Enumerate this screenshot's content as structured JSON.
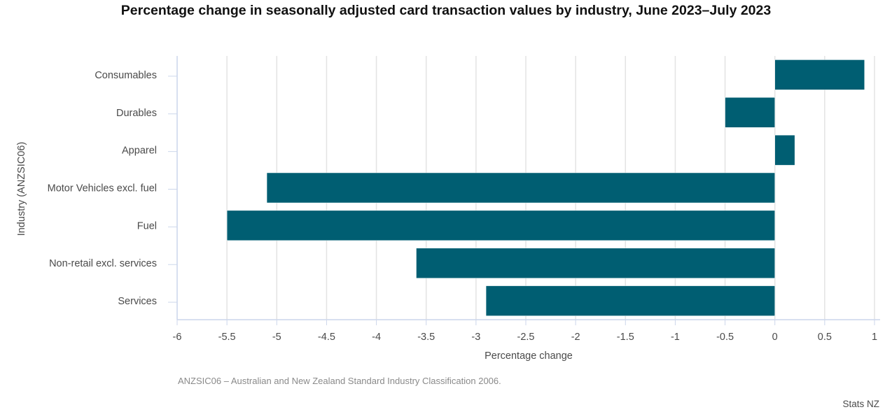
{
  "chart_data": {
    "type": "bar",
    "orientation": "horizontal",
    "title": "Percentage change in seasonally adjusted card transaction values by industry, June 2023–July 2023",
    "xlabel": "Percentage change",
    "ylabel": "Industry (ANZSIC06)",
    "categories": [
      "Consumables",
      "Durables",
      "Apparel",
      "Motor Vehicles excl. fuel",
      "Fuel",
      "Non-retail excl. services",
      "Services"
    ],
    "values": [
      0.9,
      -0.5,
      0.2,
      -5.1,
      -5.5,
      -3.6,
      -2.9
    ],
    "xlim": [
      -6,
      1
    ],
    "xticks": [
      "-6",
      "-5.5",
      "-5",
      "-4.5",
      "-4",
      "-3.5",
      "-3",
      "-2.5",
      "-2",
      "-1.5",
      "-1",
      "-0.5",
      "0",
      "0.5",
      "1"
    ],
    "xtick_values": [
      -6,
      -5.5,
      -5,
      -4.5,
      -4,
      -3.5,
      -3,
      -2.5,
      -2,
      -1.5,
      -1,
      -0.5,
      0,
      0.5,
      1
    ],
    "grid": true,
    "legend": "none",
    "bar_color": "#005e72"
  },
  "footnote": "ANZSIC06 – Australian and New Zealand Standard Industry Classification 2006.",
  "credit": "Stats NZ"
}
